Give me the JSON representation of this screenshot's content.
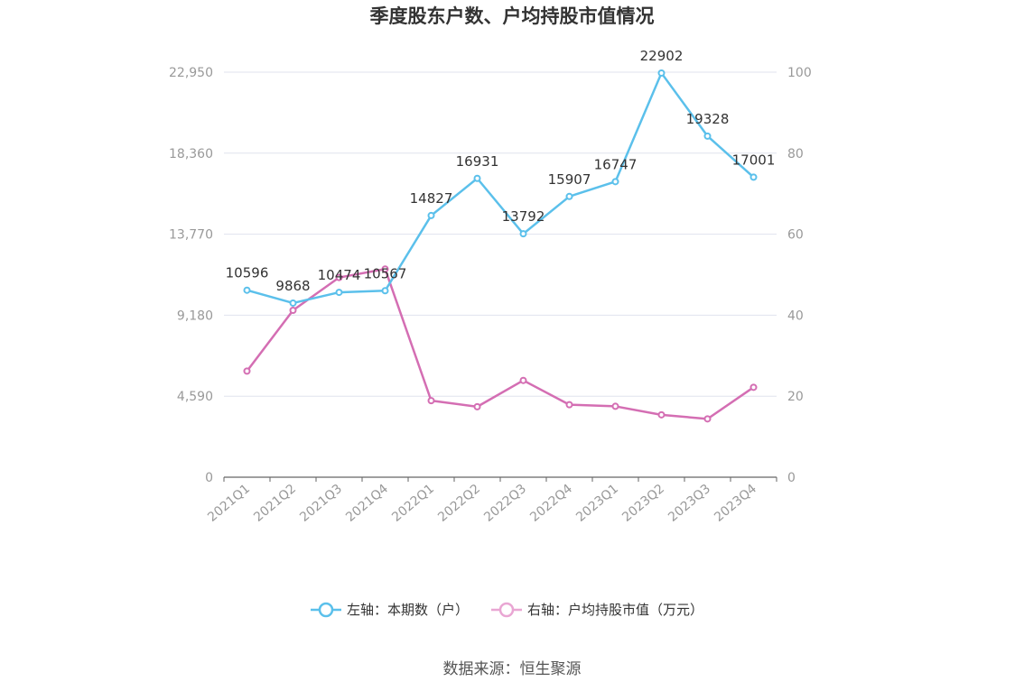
{
  "chart_data": {
    "type": "line",
    "title": "季度股东户数、户均持股市值情况",
    "categories": [
      "2021Q1",
      "2021Q2",
      "2021Q3",
      "2021Q4",
      "2022Q1",
      "2022Q2",
      "2022Q3",
      "2022Q4",
      "2023Q1",
      "2023Q2",
      "2023Q3",
      "2023Q4"
    ],
    "left_axis": {
      "ylim": [
        0,
        22950
      ],
      "ticks": [
        "0",
        "4,590",
        "9,180",
        "13,770",
        "18,360",
        "22,950"
      ],
      "tick_values": [
        0,
        4590,
        9180,
        13770,
        18360,
        22950
      ]
    },
    "right_axis": {
      "ylim": [
        0,
        100
      ],
      "ticks": [
        "0",
        "20",
        "40",
        "60",
        "80",
        "100"
      ],
      "tick_values": [
        0,
        20,
        40,
        60,
        80,
        100
      ]
    },
    "series": [
      {
        "name": "左轴：本期数（户）",
        "axis": "left",
        "color": "#5bc0eb",
        "values": [
          10596,
          9868,
          10474,
          10567,
          14827,
          16931,
          13792,
          15907,
          16747,
          22902,
          19328,
          17001
        ],
        "labels": [
          "10596",
          "9868",
          "10474",
          "10567",
          "14827",
          "16931",
          "13792",
          "15907",
          "16747",
          "22902",
          "19328",
          "17001"
        ]
      },
      {
        "name": "右轴：户均持股市值（万元）",
        "axis": "right",
        "color": "#d46eb3",
        "values": [
          26.2,
          41.2,
          49.3,
          51.4,
          18.9,
          17.4,
          23.9,
          17.9,
          17.5,
          15.4,
          14.4,
          22.2
        ]
      }
    ],
    "grid": true,
    "legend_position": "bottom",
    "source": "数据来源：恒生聚源"
  }
}
